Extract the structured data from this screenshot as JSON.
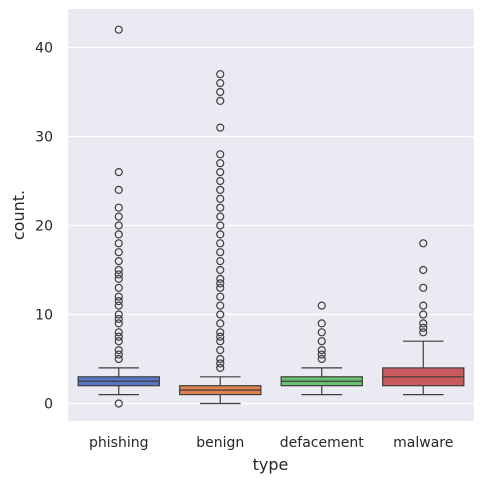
{
  "chart_data": {
    "type": "box",
    "xlabel": "type",
    "ylabel": "count.",
    "ylim": [
      -2,
      44
    ],
    "yticks": [
      0,
      10,
      20,
      30,
      40
    ],
    "grid": true,
    "background": "#EAEAF2",
    "categories": [
      "phishing",
      "benign",
      "defacement",
      "malware"
    ],
    "boxes": [
      {
        "category": "phishing",
        "color": "#5975C5",
        "q1": 2,
        "median": 2.5,
        "q3": 3,
        "whisker_low": 1,
        "whisker_high": 4,
        "outliers": [
          0,
          5,
          5.5,
          6,
          7,
          7.5,
          8,
          9,
          9.5,
          10,
          11,
          11.5,
          12,
          13,
          14,
          14.5,
          15,
          16,
          17,
          18,
          19,
          20,
          21,
          22,
          24,
          26,
          42
        ]
      },
      {
        "category": "benign",
        "color": "#DE8452",
        "q1": 1,
        "median": 1.5,
        "q3": 2,
        "whisker_low": 0,
        "whisker_high": 3,
        "outliers": [
          4,
          4.5,
          5,
          6,
          7,
          7.5,
          8,
          9,
          10,
          11,
          12,
          13,
          13.5,
          14,
          15,
          16,
          17,
          18,
          19,
          20,
          21,
          22,
          23,
          24,
          25,
          26,
          27,
          28,
          31,
          34,
          35,
          36,
          37
        ]
      },
      {
        "category": "defacement",
        "color": "#6BBF71",
        "q1": 2,
        "median": 2.5,
        "q3": 3,
        "whisker_low": 1,
        "whisker_high": 4,
        "outliers": [
          5,
          5.5,
          6,
          7,
          8,
          9,
          11
        ]
      },
      {
        "category": "malware",
        "color": "#C95A5E",
        "q1": 2,
        "median": 3,
        "q3": 4,
        "whisker_low": 1,
        "whisker_high": 7,
        "outliers": [
          8,
          8.5,
          9,
          10,
          11,
          13,
          15,
          18
        ]
      }
    ]
  }
}
